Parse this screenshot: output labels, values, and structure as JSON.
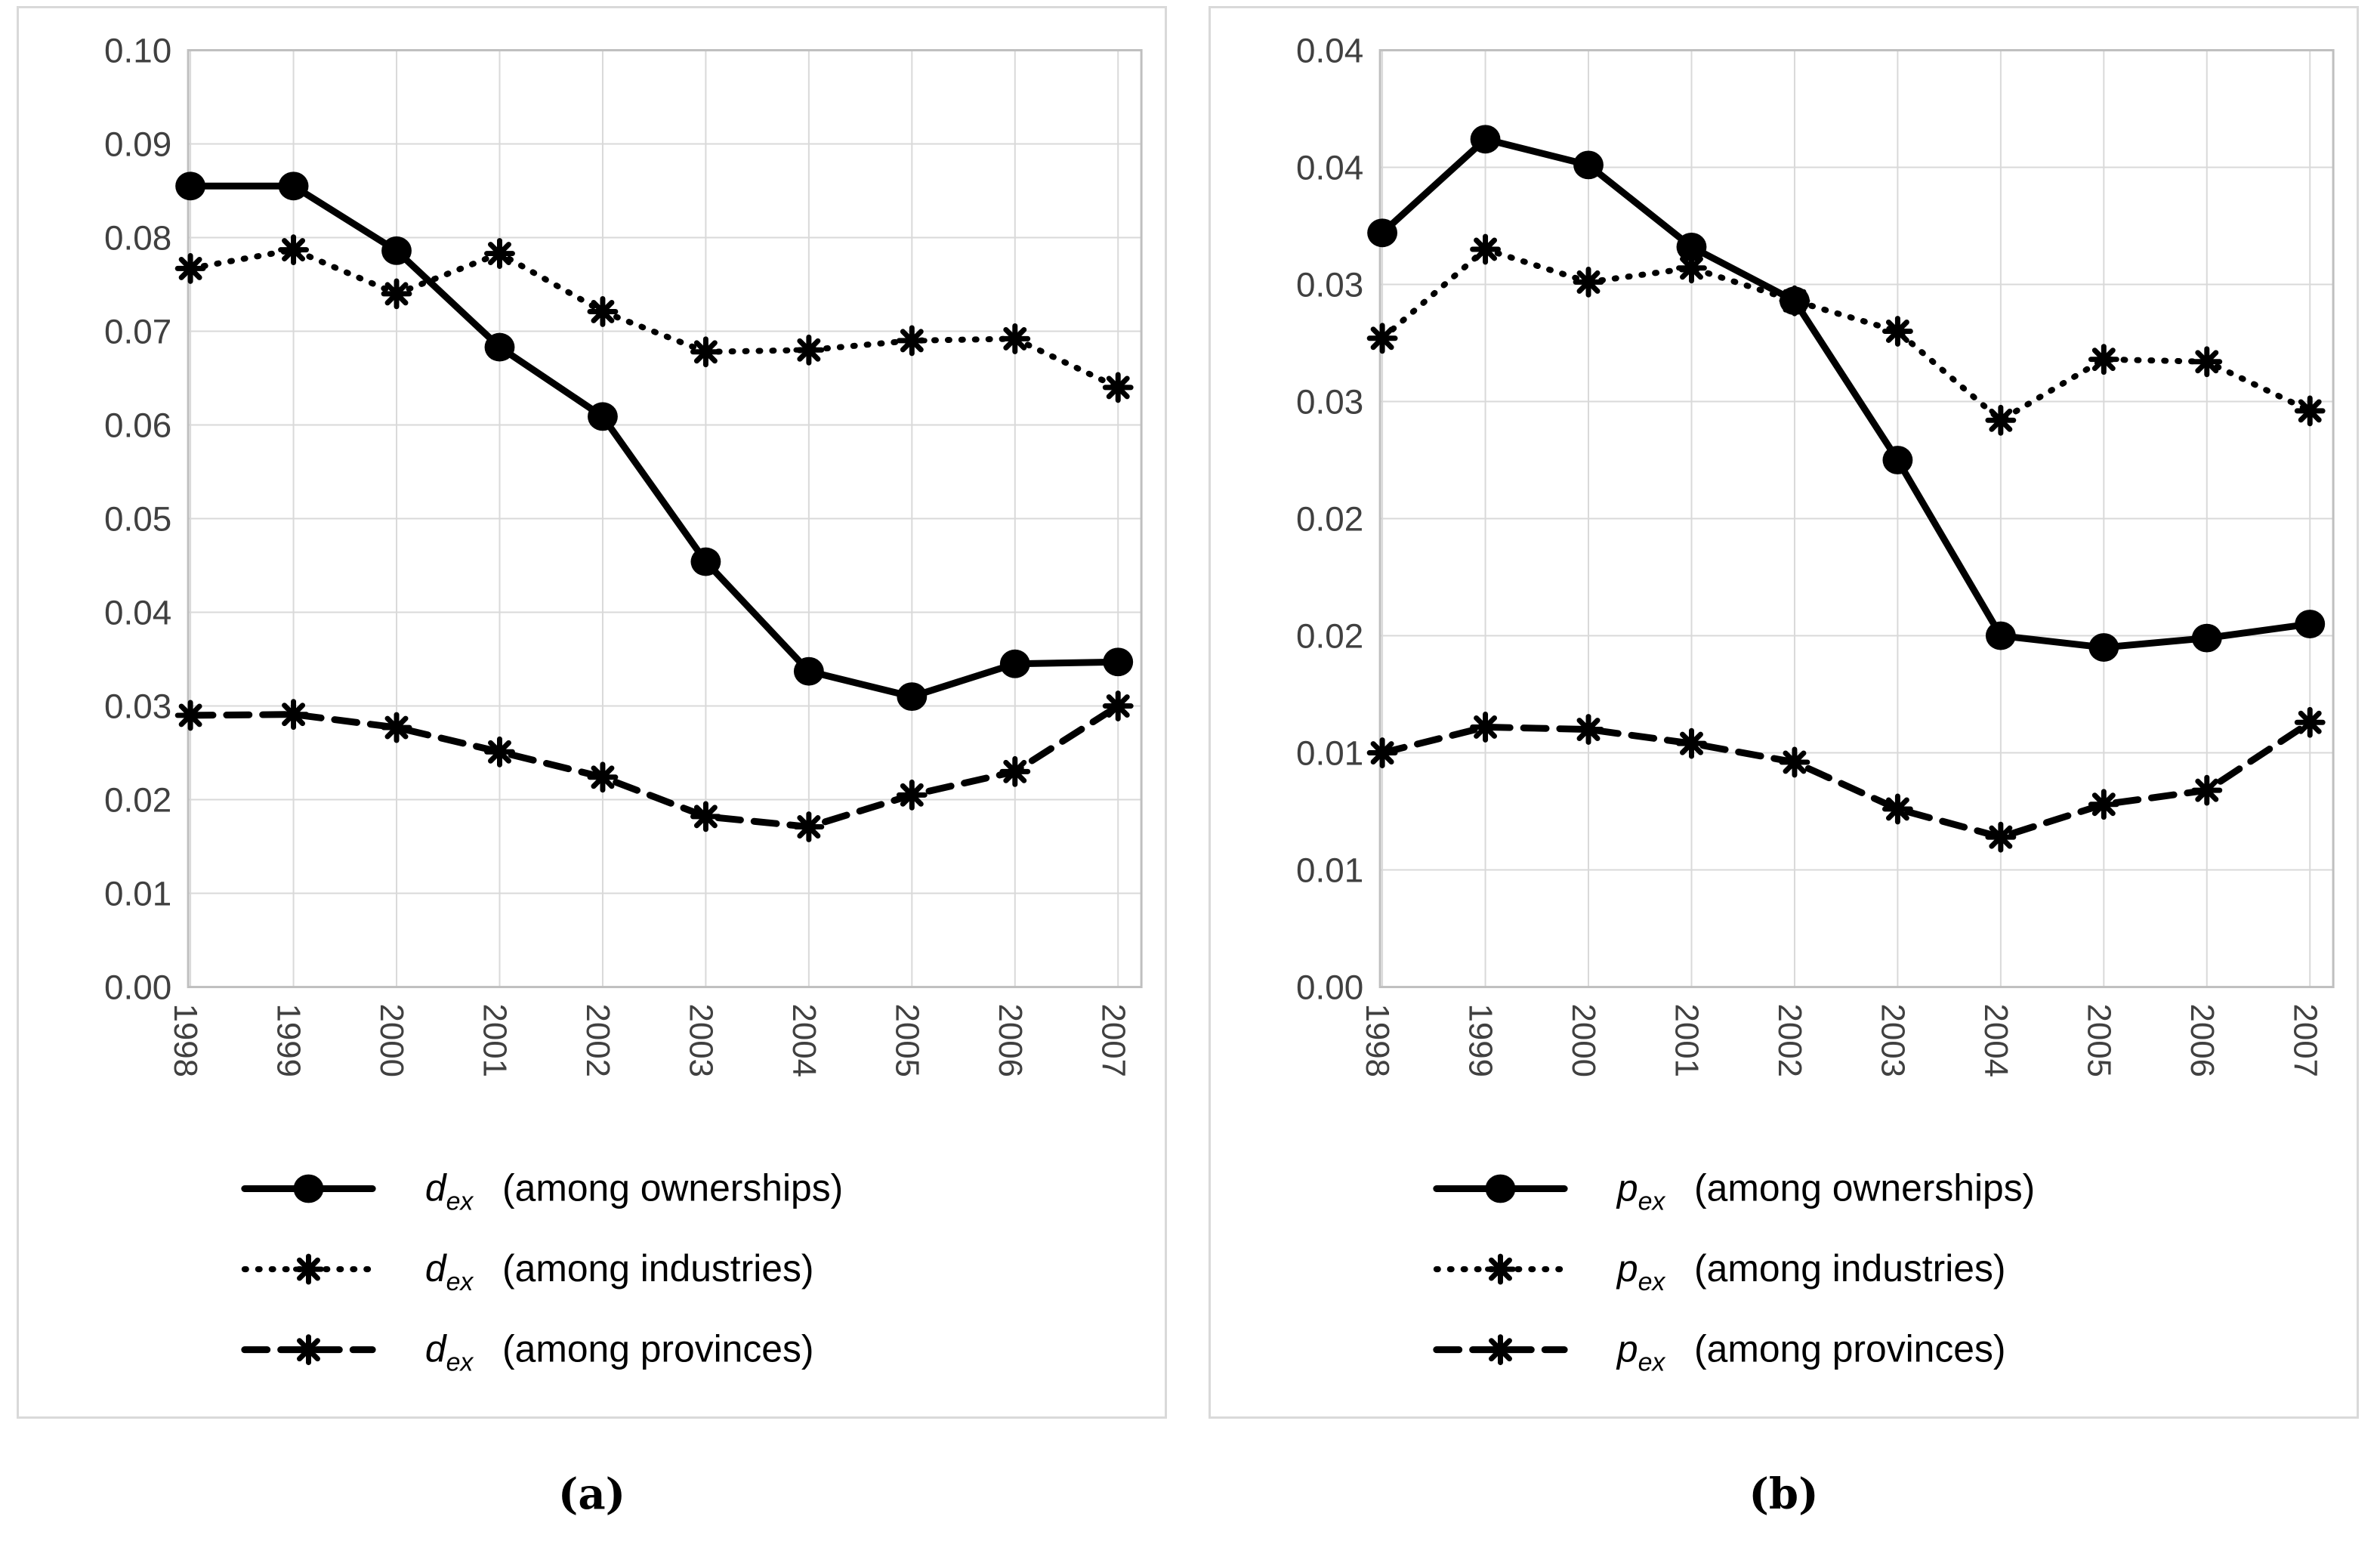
{
  "figure": {
    "description": "Two-panel line chart of exit decomposition indices, 1998-2007",
    "accent_color": "#000000",
    "gridline_color": "#d9d9d9",
    "border_color": "#bfbfbf",
    "tick_text_color": "#404040"
  },
  "chart_data": [
    {
      "type": "line",
      "caption": "(a)",
      "title": "",
      "xlabel": "",
      "ylabel": "",
      "x": [
        "1998",
        "1999",
        "2000",
        "2001",
        "2002",
        "2003",
        "2004",
        "2005",
        "2006",
        "2007"
      ],
      "ylim": [
        0,
        0.1
      ],
      "ytick_step": 0.01,
      "ytick_labels": [
        "0.00",
        "0.01",
        "0.02",
        "0.03",
        "0.04",
        "0.05",
        "0.06",
        "0.07",
        "0.08",
        "0.09",
        "0.10"
      ],
      "grid": true,
      "legend_position": "bottom",
      "series": [
        {
          "name": "d_ex (among ownerships)",
          "style": "solid",
          "marker": "circle",
          "values": [
            0.0855,
            0.0855,
            0.0786,
            0.0683,
            0.0609,
            0.0454,
            0.0337,
            0.031,
            0.0345,
            0.0347
          ]
        },
        {
          "name": "d_ex (among industries)",
          "style": "dotted",
          "marker": "star",
          "values": [
            0.0767,
            0.0787,
            0.074,
            0.0783,
            0.0721,
            0.0678,
            0.068,
            0.069,
            0.0692,
            0.064
          ]
        },
        {
          "name": "d_ex (among provinces)",
          "style": "dashed",
          "marker": "star",
          "values": [
            0.029,
            0.0291,
            0.0277,
            0.0251,
            0.0224,
            0.0182,
            0.0171,
            0.0205,
            0.023,
            0.03
          ]
        }
      ],
      "legend": [
        {
          "symbol": "d",
          "sub": "ex",
          "label": "(among ownerships)"
        },
        {
          "symbol": "d",
          "sub": "ex",
          "label": "(among industries)"
        },
        {
          "symbol": "d",
          "sub": "ex",
          "label": "(among provinces)"
        }
      ]
    },
    {
      "type": "line",
      "caption": "(b)",
      "title": "",
      "xlabel": "",
      "ylabel": "",
      "x": [
        "1998",
        "1999",
        "2000",
        "2001",
        "2002",
        "2003",
        "2004",
        "2005",
        "2006",
        "2007"
      ],
      "ylim": [
        0,
        0.04
      ],
      "ytick_step": 0.005,
      "ytick_labels": [
        "0.00",
        "0.01",
        "0.01",
        "0.02",
        "0.02",
        "0.03",
        "0.03",
        "0.04",
        "0.04"
      ],
      "grid": true,
      "legend_position": "bottom",
      "series": [
        {
          "name": "p_ex (among ownerships)",
          "style": "solid",
          "marker": "circle",
          "values": [
            0.0322,
            0.0362,
            0.0351,
            0.0316,
            0.0293,
            0.0225,
            0.015,
            0.0145,
            0.0149,
            0.0155
          ]
        },
        {
          "name": "p_ex (among industries)",
          "style": "dotted",
          "marker": "star",
          "values": [
            0.0277,
            0.0315,
            0.0301,
            0.0307,
            0.0293,
            0.028,
            0.0242,
            0.0268,
            0.0267,
            0.0246
          ]
        },
        {
          "name": "p_ex (among provinces)",
          "style": "dashed",
          "marker": "star",
          "values": [
            0.01,
            0.0111,
            0.011,
            0.0104,
            0.0096,
            0.0076,
            0.0064,
            0.0078,
            0.0084,
            0.0113
          ]
        }
      ],
      "legend": [
        {
          "symbol": "p",
          "sub": "ex",
          "label": "(among ownerships)"
        },
        {
          "symbol": "p",
          "sub": "ex",
          "label": "(among industries)"
        },
        {
          "symbol": "p",
          "sub": "ex",
          "label": "(among provinces)"
        }
      ]
    }
  ]
}
